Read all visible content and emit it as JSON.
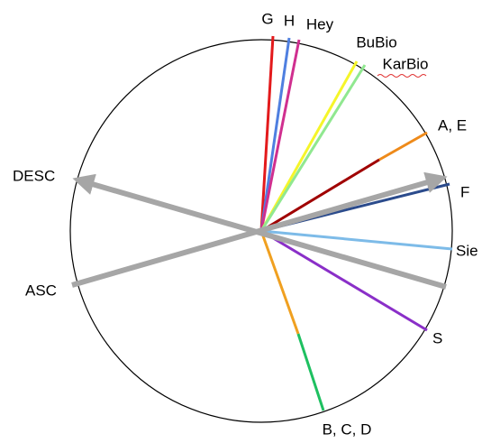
{
  "labels": {
    "g": "G",
    "h": "H",
    "hey": "Hey",
    "bubio": "BuBio",
    "karbio": "KarBio",
    "ae": "A, E",
    "desc": "DESC",
    "f": "F",
    "sie": "Sie",
    "asc": "ASC",
    "s": "S",
    "bcd": "B, C, D"
  }
}
